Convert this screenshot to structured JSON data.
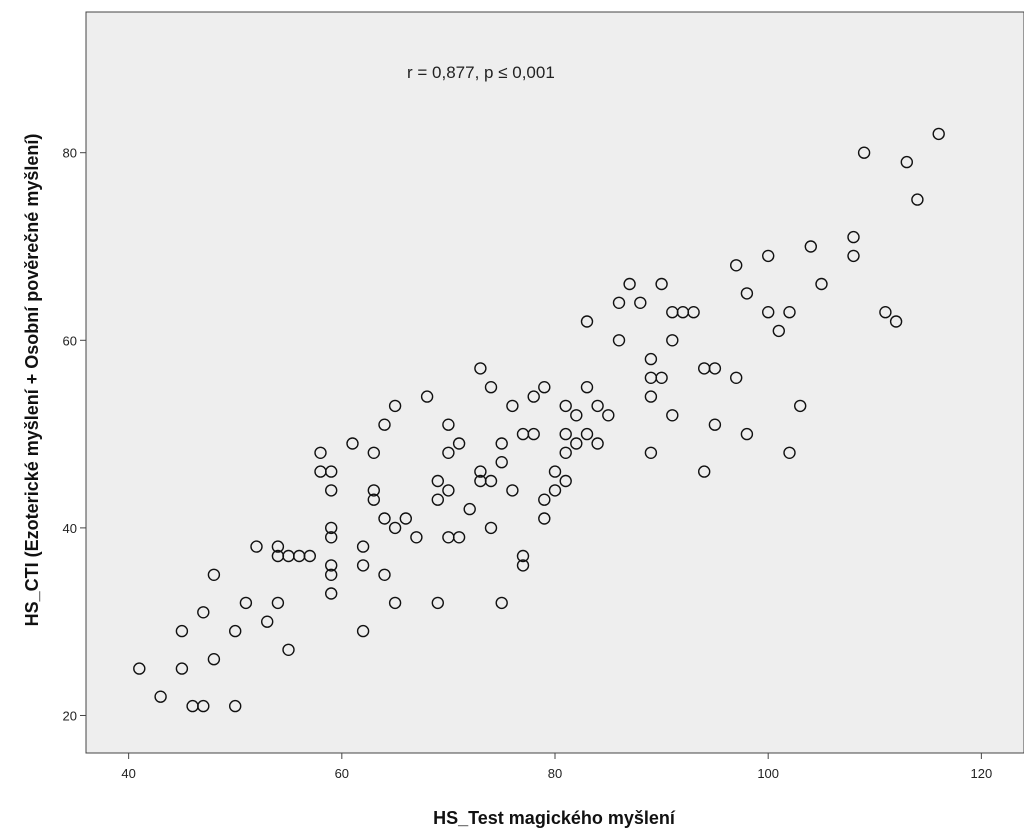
{
  "chart_data": {
    "type": "scatter",
    "xlabel": "HS_Test magického myšlení",
    "ylabel": "HS_CTI (Ezoterické myšlení + Osobní pověrečné myšlení)",
    "annotation": "r = 0,877, p ≤ 0,001",
    "xlim": [
      36,
      124
    ],
    "ylim": [
      16,
      95
    ],
    "xticks": [
      40,
      60,
      80,
      100,
      120
    ],
    "yticks": [
      20,
      40,
      60,
      80
    ],
    "grid": false,
    "colors": {
      "plot_bg": "#eeeeee",
      "marker_stroke": "#111111",
      "frame": "#444444"
    },
    "points": [
      [
        41,
        25
      ],
      [
        43,
        22
      ],
      [
        45,
        29
      ],
      [
        45,
        25
      ],
      [
        46,
        21
      ],
      [
        47,
        21
      ],
      [
        47,
        31
      ],
      [
        48,
        35
      ],
      [
        48,
        26
      ],
      [
        50,
        29
      ],
      [
        50,
        21
      ],
      [
        51,
        32
      ],
      [
        52,
        38
      ],
      [
        53,
        30
      ],
      [
        54,
        38
      ],
      [
        54,
        37
      ],
      [
        54,
        32
      ],
      [
        55,
        37
      ],
      [
        55,
        27
      ],
      [
        56,
        37
      ],
      [
        57,
        37
      ],
      [
        58,
        48
      ],
      [
        58,
        46
      ],
      [
        59,
        46
      ],
      [
        59,
        44
      ],
      [
        59,
        40
      ],
      [
        59,
        39
      ],
      [
        59,
        36
      ],
      [
        59,
        35
      ],
      [
        59,
        33
      ],
      [
        61,
        49
      ],
      [
        62,
        38
      ],
      [
        62,
        36
      ],
      [
        62,
        29
      ],
      [
        63,
        48
      ],
      [
        63,
        44
      ],
      [
        63,
        43
      ],
      [
        64,
        51
      ],
      [
        64,
        41
      ],
      [
        64,
        35
      ],
      [
        65,
        53
      ],
      [
        65,
        40
      ],
      [
        65,
        32
      ],
      [
        66,
        41
      ],
      [
        67,
        39
      ],
      [
        68,
        54
      ],
      [
        69,
        45
      ],
      [
        69,
        43
      ],
      [
        69,
        32
      ],
      [
        70,
        51
      ],
      [
        70,
        48
      ],
      [
        70,
        44
      ],
      [
        70,
        39
      ],
      [
        71,
        49
      ],
      [
        71,
        39
      ],
      [
        72,
        42
      ],
      [
        73,
        57
      ],
      [
        73,
        46
      ],
      [
        73,
        45
      ],
      [
        74,
        55
      ],
      [
        74,
        45
      ],
      [
        74,
        40
      ],
      [
        75,
        49
      ],
      [
        75,
        47
      ],
      [
        75,
        32
      ],
      [
        76,
        53
      ],
      [
        76,
        44
      ],
      [
        77,
        50
      ],
      [
        77,
        37
      ],
      [
        77,
        36
      ],
      [
        78,
        54
      ],
      [
        78,
        50
      ],
      [
        79,
        55
      ],
      [
        79,
        43
      ],
      [
        79,
        41
      ],
      [
        80,
        46
      ],
      [
        80,
        44
      ],
      [
        81,
        53
      ],
      [
        81,
        50
      ],
      [
        81,
        48
      ],
      [
        81,
        45
      ],
      [
        82,
        52
      ],
      [
        82,
        49
      ],
      [
        83,
        62
      ],
      [
        83,
        55
      ],
      [
        83,
        50
      ],
      [
        84,
        53
      ],
      [
        84,
        49
      ],
      [
        85,
        52
      ],
      [
        86,
        64
      ],
      [
        86,
        60
      ],
      [
        87,
        66
      ],
      [
        88,
        64
      ],
      [
        89,
        58
      ],
      [
        89,
        56
      ],
      [
        89,
        54
      ],
      [
        89,
        48
      ],
      [
        90,
        66
      ],
      [
        90,
        56
      ],
      [
        91,
        63
      ],
      [
        91,
        60
      ],
      [
        91,
        52
      ],
      [
        92,
        63
      ],
      [
        93,
        63
      ],
      [
        94,
        57
      ],
      [
        94,
        46
      ],
      [
        95,
        57
      ],
      [
        95,
        51
      ],
      [
        97,
        68
      ],
      [
        97,
        56
      ],
      [
        98,
        65
      ],
      [
        98,
        50
      ],
      [
        100,
        69
      ],
      [
        100,
        63
      ],
      [
        101,
        61
      ],
      [
        102,
        63
      ],
      [
        102,
        48
      ],
      [
        103,
        53
      ],
      [
        104,
        70
      ],
      [
        105,
        66
      ],
      [
        108,
        71
      ],
      [
        108,
        69
      ],
      [
        109,
        80
      ],
      [
        111,
        63
      ],
      [
        112,
        62
      ],
      [
        113,
        79
      ],
      [
        114,
        75
      ],
      [
        116,
        82
      ]
    ]
  }
}
